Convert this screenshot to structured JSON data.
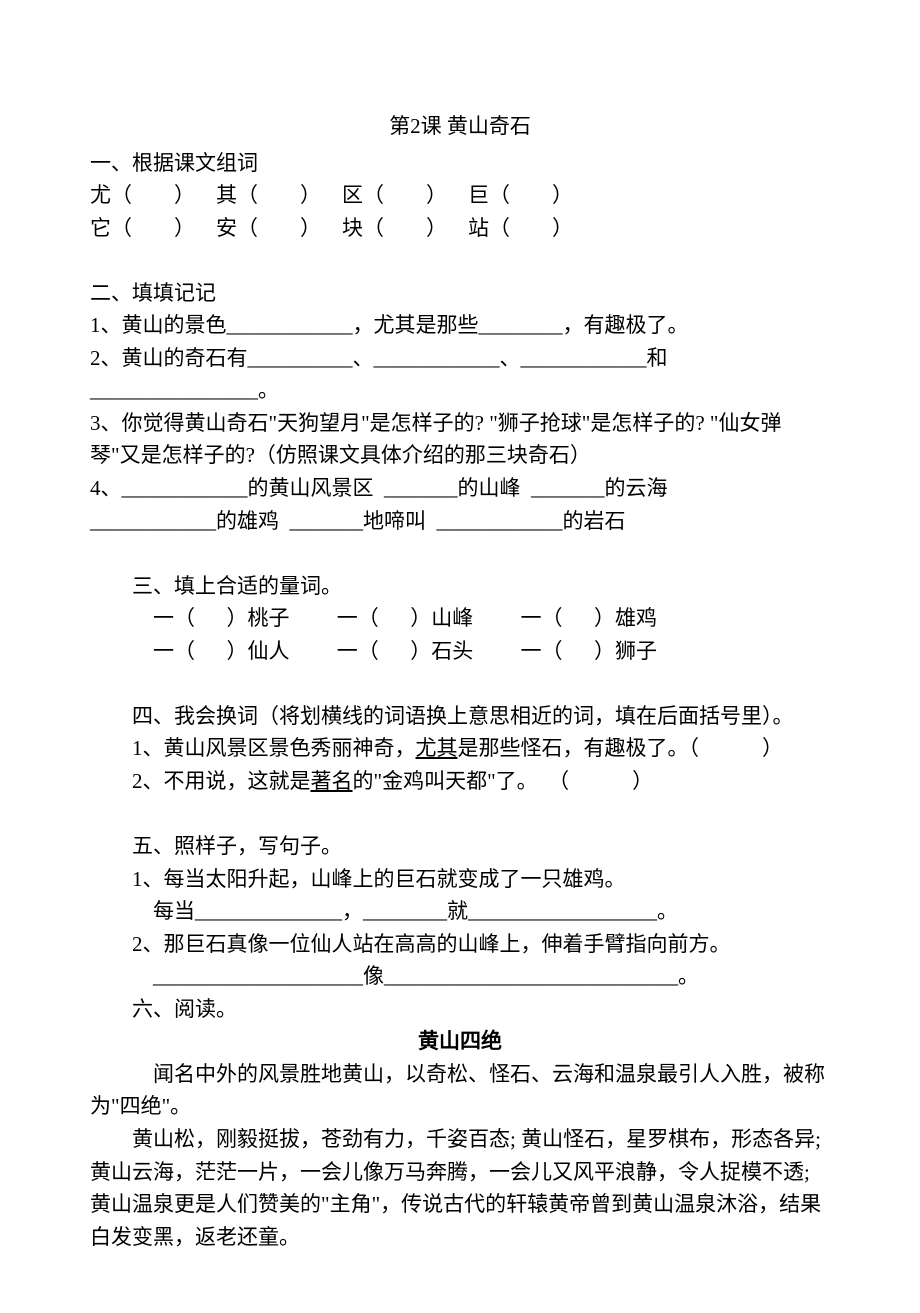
{
  "title": "第2课  黄山奇石",
  "section1_header": "一、根据课文组词",
  "section1_row1": "尤（        ）    其（        ）    区（        ）    巨（        ）",
  "section1_row2": "它（        ）    安（        ）    块（        ）    站（        ）",
  "section2_header": "二、填填记记",
  "section2_q1": "1、黄山的景色____________，尤其是那些________，有趣极了。",
  "section2_q2": "2、黄山的奇石有__________、____________、____________和________________。",
  "section2_q3a": "3、你觉得黄山奇石\"天狗望月\"是怎样子的? \"狮子抢球\"是怎样子的? \"仙女弹琴\"又是怎样子的?（仿照课文具体介绍的那三块奇石）",
  "section2_q4a": "4、____________的黄山风景区  _______的山峰  _______的云海",
  "section2_q4b": "____________的雄鸡  _______地啼叫  ____________的岩石",
  "section3_header": "三、填上合适的量词。",
  "section3_row1": "一（      ）桃子         一（      ）山峰         一（      ）雄鸡",
  "section3_row2": "一（      ）仙人         一（      ）石头         一（      ）狮子",
  "section4_header": "四、我会换词（将划横线的词语换上意思相近的词，填在后面括号里）。",
  "section4_q1_pre": "1、黄山风景区景色秀丽神奇，",
  "section4_q1_u": "尤其",
  "section4_q1_post": "是那些怪石，有趣极了。（            ）",
  "section4_q2_pre": "2、不用说，这就是",
  "section4_q2_u": "著名",
  "section4_q2_post": "的\"金鸡叫天都\"了。  （            ）",
  "section5_header": "五、照样子，写句子。",
  "section5_q1": "1、每当太阳升起，山峰上的巨石就变成了一只雄鸡。",
  "section5_q1_blank": "每当______________，________就__________________。",
  "section5_q2": "2、那巨石真像一位仙人站在高高的山峰上，伸着手臂指向前方。",
  "section5_q2_blank": "____________________像____________________________。",
  "section6_header": "六、阅读。",
  "reading_title": "黄山四绝",
  "reading_p1": "闻名中外的风景胜地黄山，以奇松、怪石、云海和温泉最引人入胜，被称为\"四绝\"。",
  "reading_p2": "黄山松，刚毅挺拔，苍劲有力，千姿百态; 黄山怪石，星罗棋布，形态各异; 黄山云海，茫茫一片，一会儿像万马奔腾，一会儿又风平浪静，令人捉模不透; 黄山温泉更是人们赞美的\"主角\"，传说古代的轩辕黄帝曾到黄山温泉沐浴，结果白发变黑，返老还童。"
}
